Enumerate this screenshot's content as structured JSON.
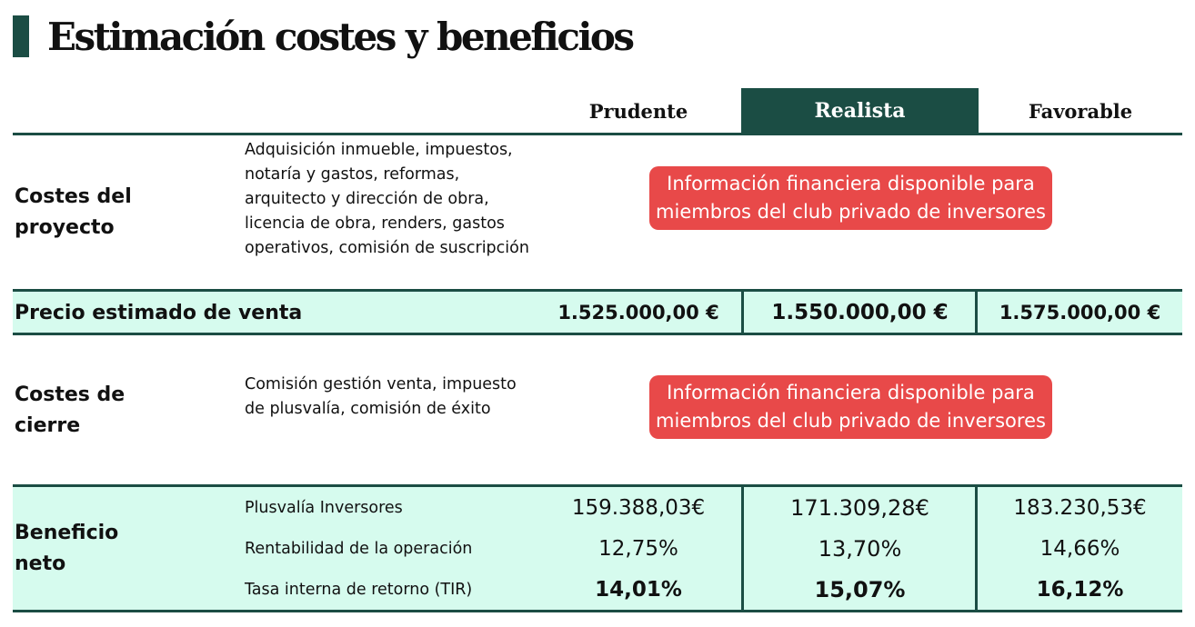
{
  "title": "Estimación costes y beneficios",
  "columns": [
    "Prudente",
    "Realista",
    "Favorable"
  ],
  "project_costs": {
    "label": "Costes del proyecto",
    "description": "Adquisición inmueble, impuestos, notaría y gastos, reformas, arquitecto y dirección de obra, licencia de obra, renders, gastos operativos, comisión de suscripción",
    "notice": "Información financiera disponible para miembros del club privado de inversores"
  },
  "sale_price": {
    "label": "Precio estimado de venta",
    "values": [
      "1.525.000,00 €",
      "1.550.000,00 €",
      "1.575.000,00 €"
    ]
  },
  "closing_costs": {
    "label": "Costes de cierre",
    "description": "Comisión gestión venta, impuesto de plusvalía, comisión de éxito",
    "notice": "Información financiera disponible para miembros del club privado de inversores"
  },
  "net_profit": {
    "label": "Beneficio neto",
    "metrics": [
      {
        "name": "Plusvalía Inversores",
        "values": [
          "159.388,03€",
          "171.309,28€",
          "183.230,53€"
        ]
      },
      {
        "name": "Rentabilidad de la operación",
        "values": [
          "12,75%",
          "13,70%",
          "14,66%"
        ]
      },
      {
        "name": "Tasa interna de retorno (TIR)",
        "values": [
          "14,01%",
          "15,07%",
          "16,12%"
        ]
      }
    ]
  },
  "colors": {
    "accent": "#1b4d44",
    "band": "#d6fbee",
    "notice": "#e84949"
  }
}
